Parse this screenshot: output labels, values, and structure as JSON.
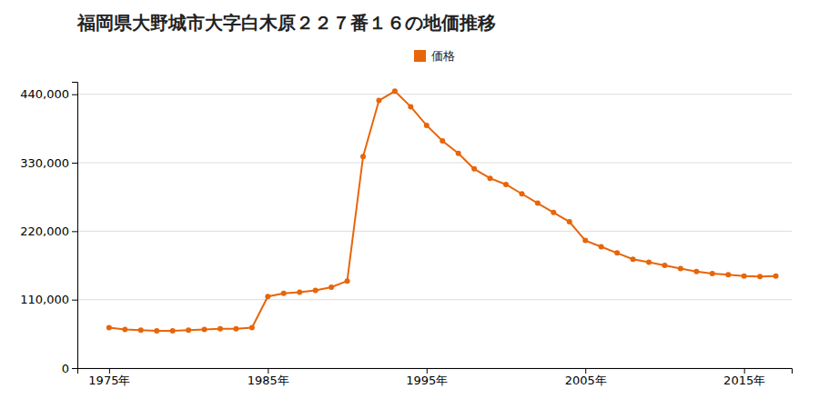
{
  "chart_data": {
    "type": "line",
    "title": "福岡県大野城市大字白木原２２７番１６の地価推移",
    "x": [
      1975,
      1976,
      1977,
      1978,
      1979,
      1980,
      1981,
      1982,
      1983,
      1984,
      1985,
      1986,
      1987,
      1988,
      1989,
      1990,
      1991,
      1992,
      1993,
      1994,
      1995,
      1996,
      1997,
      1998,
      1999,
      2000,
      2001,
      2002,
      2003,
      2004,
      2005,
      2006,
      2007,
      2008,
      2009,
      2010,
      2011,
      2012,
      2013,
      2014,
      2015,
      2016,
      2017
    ],
    "series": [
      {
        "name": "価格",
        "color": "#e8650a",
        "marker": "circle",
        "values": [
          65000,
          62000,
          61000,
          60000,
          60000,
          61000,
          62000,
          63000,
          63000,
          65000,
          115000,
          120000,
          122000,
          125000,
          130000,
          140000,
          340000,
          430000,
          445000,
          420000,
          390000,
          365000,
          345000,
          320000,
          305000,
          295000,
          280000,
          265000,
          250000,
          235000,
          205000,
          195000,
          185000,
          175000,
          170000,
          165000,
          160000,
          155000,
          152000,
          150000,
          148000,
          147000,
          148000
        ]
      }
    ],
    "xlim": [
      1973,
      2018
    ],
    "xticks": [
      {
        "value": 1975,
        "label": "1975年"
      },
      {
        "value": 1985,
        "label": "1985年"
      },
      {
        "value": 1995,
        "label": "1995年"
      },
      {
        "value": 2005,
        "label": "2005年"
      },
      {
        "value": 2015,
        "label": "2015年"
      }
    ],
    "ylim": [
      0,
      460000
    ],
    "yticks": [
      0,
      {
        "value": 110000,
        "label": "110,000"
      },
      {
        "value": 220000,
        "label": "220,000"
      },
      {
        "value": 330000,
        "label": "330,000"
      },
      {
        "value": 440000,
        "label": "440,000"
      }
    ],
    "grid": "y",
    "legend": "top"
  }
}
